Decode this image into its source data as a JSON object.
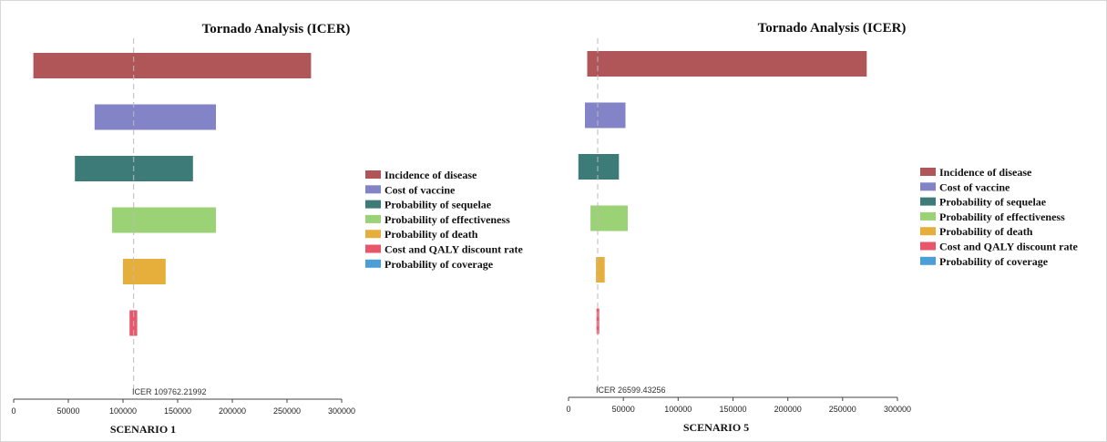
{
  "chart_data": [
    {
      "type": "bar",
      "orientation": "horizontal",
      "title": "Tornado Analysis (ICER)",
      "xlabel": "SCENARIO 1",
      "xlim": [
        0,
        300000
      ],
      "ticks": [
        "0",
        "50000",
        "100000",
        "150000",
        "200000",
        "250000",
        "300000"
      ],
      "base_value": 109762.21992,
      "base_label": "ICER 109762.21992",
      "legend_position": "right",
      "series": [
        {
          "name": "Incidence of disease",
          "low": 18000,
          "high": 272000,
          "color": "#b05658"
        },
        {
          "name": "Cost of vaccine",
          "low": 74000,
          "high": 185000,
          "color": "#8383c8"
        },
        {
          "name": "Probability of sequelae",
          "low": 56000,
          "high": 164000,
          "color": "#3d7b78"
        },
        {
          "name": "Probability of effectiveness",
          "low": 90000,
          "high": 185000,
          "color": "#9bd276"
        },
        {
          "name": "Probability of death",
          "low": 100000,
          "high": 139000,
          "color": "#e6ae3a"
        },
        {
          "name": "Cost and QALY discount rate",
          "low": 106000,
          "high": 113000,
          "color": "#e8566b"
        },
        {
          "name": "Probability of coverage",
          "low": 109762,
          "high": 109762,
          "color": "#4b9fd8"
        }
      ]
    },
    {
      "type": "bar",
      "orientation": "horizontal",
      "title": "Tornado Analysis (ICER)",
      "xlabel": "SCENARIO 5",
      "xlim": [
        0,
        300000
      ],
      "ticks": [
        "0",
        "50000",
        "100000",
        "150000",
        "200000",
        "250000",
        "300000"
      ],
      "base_value": 26599.43256,
      "base_label": "ICER 26599.43256",
      "legend_position": "right",
      "series": [
        {
          "name": "Incidence of disease",
          "low": 17000,
          "high": 272000,
          "color": "#b05658"
        },
        {
          "name": "Cost of vaccine",
          "low": 15000,
          "high": 52000,
          "color": "#8383c8"
        },
        {
          "name": "Probability of sequelae",
          "low": 9000,
          "high": 46000,
          "color": "#3d7b78"
        },
        {
          "name": "Probability of effectiveness",
          "low": 20000,
          "high": 54000,
          "color": "#9bd276"
        },
        {
          "name": "Probability of death",
          "low": 25000,
          "high": 33000,
          "color": "#e6ae3a"
        },
        {
          "name": "Cost and QALY discount rate",
          "low": 25500,
          "high": 28000,
          "color": "#e8566b"
        },
        {
          "name": "Probability of coverage",
          "low": 26599,
          "high": 26599,
          "color": "#4b9fd8"
        }
      ]
    }
  ]
}
